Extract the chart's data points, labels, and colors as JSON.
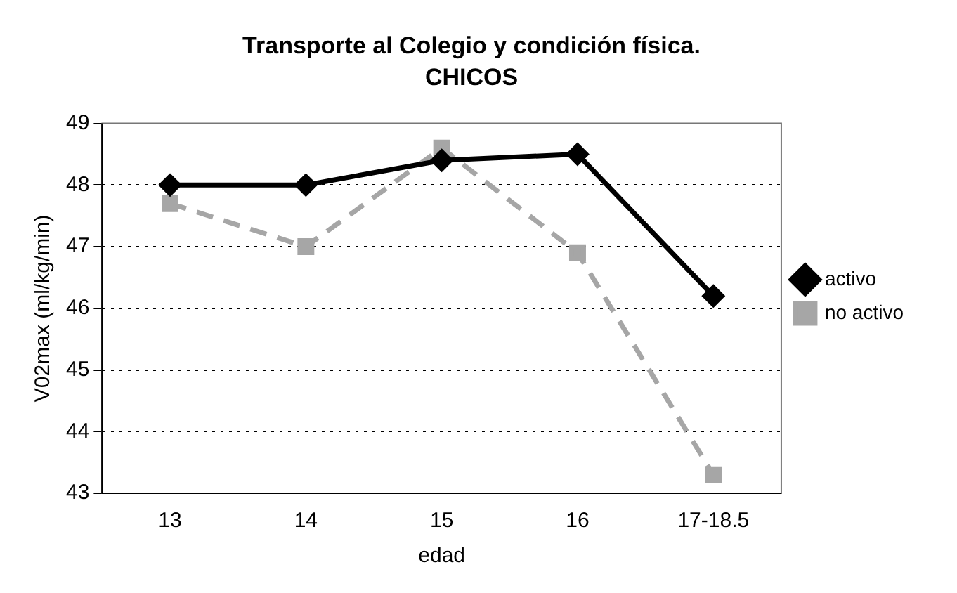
{
  "chart_data": {
    "type": "line",
    "title": "Transporte al Colegio y condición física.",
    "subtitle": "CHICOS",
    "xlabel": "edad",
    "ylabel": "V02max (ml/kg/min)",
    "categories": [
      "13",
      "14",
      "15",
      "16",
      "17-18.5"
    ],
    "series": [
      {
        "name": "activo",
        "color": "#000000",
        "values": [
          48.0,
          48.0,
          48.4,
          48.5,
          46.2
        ],
        "marker": "diamond",
        "line_style": "solid"
      },
      {
        "name": "no activo",
        "color": "#a6a6a6",
        "values": [
          47.7,
          47.0,
          48.6,
          46.9,
          43.3
        ],
        "marker": "square",
        "line_style": "dashed"
      }
    ],
    "ylim": [
      43,
      49
    ],
    "yticks": [
      43,
      44,
      45,
      46,
      47,
      48,
      49
    ],
    "grid": "y",
    "legend": "right"
  }
}
